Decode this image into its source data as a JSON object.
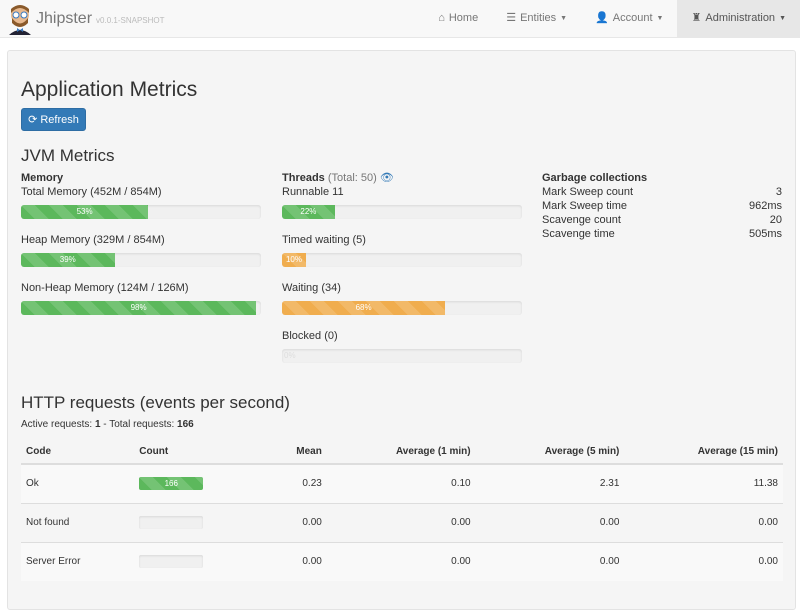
{
  "nav": {
    "brand": "Jhipster",
    "version": "v0.0.1-SNAPSHOT",
    "items": [
      {
        "label": "Home",
        "icon": "home-icon"
      },
      {
        "label": "Entities",
        "icon": "list-icon"
      },
      {
        "label": "Account",
        "icon": "user-icon"
      },
      {
        "label": "Administration",
        "icon": "tower-icon",
        "active": true
      }
    ]
  },
  "page": {
    "title": "Application Metrics",
    "refresh": "Refresh",
    "jvm_title": "JVM Metrics",
    "http_title": "HTTP requests (events per second)"
  },
  "memory": {
    "title": "Memory",
    "items": [
      {
        "label": "Total Memory (452M / 854M)",
        "pct": 53,
        "text": "53%"
      },
      {
        "label": "Heap Memory (329M / 854M)",
        "pct": 39,
        "text": "39%"
      },
      {
        "label": "Non-Heap Memory (124M / 126M)",
        "pct": 98,
        "text": "98%"
      }
    ]
  },
  "threads": {
    "title": "Threads",
    "total": "(Total: 50)",
    "items": [
      {
        "label": "Runnable 11",
        "pct": 22,
        "text": "22%",
        "color": "#5cb85c"
      },
      {
        "label": "Timed waiting (5)",
        "pct": 10,
        "text": "10%",
        "color": "#f0ad4e"
      },
      {
        "label": "Waiting (34)",
        "pct": 68,
        "text": "68%",
        "color": "#f0ad4e"
      },
      {
        "label": "Blocked (0)",
        "pct": 0,
        "text": "0%",
        "color": "#d9534f"
      }
    ]
  },
  "gc": {
    "title": "Garbage collections",
    "rows": [
      {
        "label": "Mark Sweep count",
        "value": "3"
      },
      {
        "label": "Mark Sweep time",
        "value": "962ms"
      },
      {
        "label": "Scavenge count",
        "value": "20"
      },
      {
        "label": "Scavenge time",
        "value": "505ms"
      }
    ]
  },
  "requests": {
    "active_label": "Active requests:",
    "active": "1",
    "total_label": "Total requests:",
    "total": "166"
  },
  "table": {
    "headers": [
      "Code",
      "Count",
      "Mean",
      "Average (1 min)",
      "Average (5 min)",
      "Average (15 min)"
    ],
    "rows": [
      {
        "code": "Ok",
        "count": "166",
        "pct": 100,
        "mean": "0.23",
        "a1": "0.10",
        "a5": "2.31",
        "a15": "11.38"
      },
      {
        "code": "Not found",
        "count": "",
        "pct": 0,
        "mean": "0.00",
        "a1": "0.00",
        "a5": "0.00",
        "a15": "0.00"
      },
      {
        "code": "Server Error",
        "count": "",
        "pct": 0,
        "mean": "0.00",
        "a1": "0.00",
        "a5": "0.00",
        "a15": "0.00"
      }
    ]
  }
}
